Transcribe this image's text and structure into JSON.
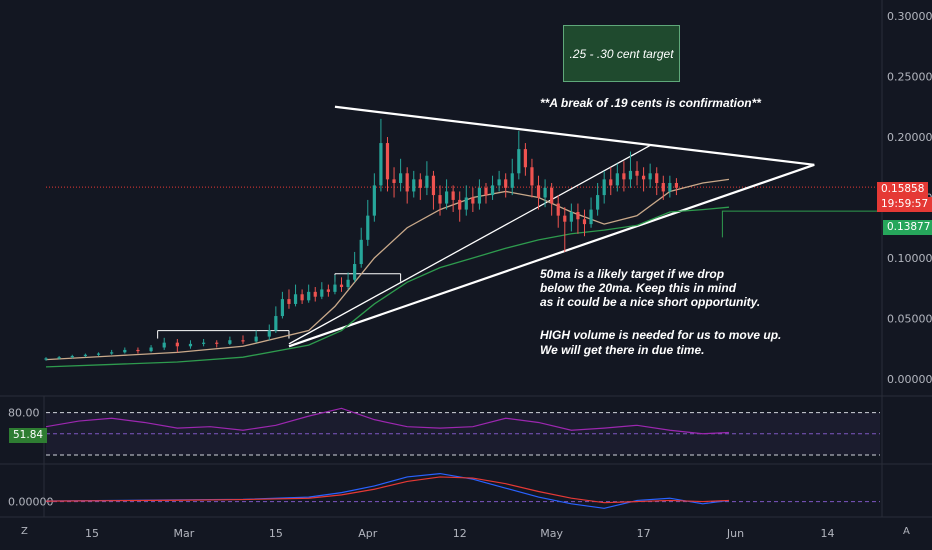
{
  "chart_data": [
    {
      "type": "candlestick",
      "title": "",
      "ylim": [
        -0.005,
        0.305
      ],
      "y_ticks": [
        "0.30000",
        "0.25000",
        "0.20000",
        "0.15000",
        "0.10000",
        "0.05000",
        "0.00000"
      ],
      "x_ticks": [
        "15",
        "Mar",
        "15",
        "Apr",
        "12",
        "May",
        "17",
        "Jun",
        "14"
      ],
      "x_range_days": [
        0,
        127
      ],
      "series": [
        {
          "name": "20ma",
          "color": "#c9a98a",
          "style": "line",
          "x": [
            0,
            10,
            20,
            30,
            40,
            44,
            50,
            55,
            60,
            65,
            70,
            75,
            80,
            85,
            90,
            95,
            100,
            104
          ],
          "y": [
            0.016,
            0.019,
            0.022,
            0.027,
            0.04,
            0.06,
            0.1,
            0.125,
            0.14,
            0.15,
            0.155,
            0.15,
            0.138,
            0.128,
            0.135,
            0.155,
            0.162,
            0.165
          ]
        },
        {
          "name": "50ma",
          "color": "#2e9b4e",
          "style": "line",
          "x": [
            0,
            10,
            20,
            30,
            40,
            45,
            50,
            55,
            60,
            65,
            70,
            75,
            80,
            85,
            90,
            95,
            100,
            104
          ],
          "y": [
            0.01,
            0.012,
            0.014,
            0.018,
            0.028,
            0.04,
            0.062,
            0.08,
            0.092,
            0.1,
            0.108,
            0.115,
            0.12,
            0.123,
            0.127,
            0.138,
            0.14,
            0.142
          ]
        }
      ],
      "candles": [
        {
          "d": 0,
          "o": 0.016,
          "c": 0.017,
          "h": 0.018,
          "l": 0.015
        },
        {
          "d": 2,
          "o": 0.017,
          "c": 0.018,
          "h": 0.019,
          "l": 0.016
        },
        {
          "d": 4,
          "o": 0.018,
          "c": 0.019,
          "h": 0.02,
          "l": 0.017
        },
        {
          "d": 6,
          "o": 0.019,
          "c": 0.02,
          "h": 0.021,
          "l": 0.018
        },
        {
          "d": 8,
          "o": 0.02,
          "c": 0.021,
          "h": 0.022,
          "l": 0.019
        },
        {
          "d": 10,
          "o": 0.021,
          "c": 0.022,
          "h": 0.024,
          "l": 0.02
        },
        {
          "d": 12,
          "o": 0.022,
          "c": 0.024,
          "h": 0.026,
          "l": 0.021
        },
        {
          "d": 14,
          "o": 0.024,
          "c": 0.023,
          "h": 0.026,
          "l": 0.021
        },
        {
          "d": 16,
          "o": 0.023,
          "c": 0.026,
          "h": 0.028,
          "l": 0.022
        },
        {
          "d": 18,
          "o": 0.026,
          "c": 0.03,
          "h": 0.034,
          "l": 0.024
        },
        {
          "d": 20,
          "o": 0.03,
          "c": 0.027,
          "h": 0.033,
          "l": 0.022
        },
        {
          "d": 22,
          "o": 0.027,
          "c": 0.029,
          "h": 0.032,
          "l": 0.025
        },
        {
          "d": 24,
          "o": 0.029,
          "c": 0.03,
          "h": 0.033,
          "l": 0.027
        },
        {
          "d": 26,
          "o": 0.03,
          "c": 0.029,
          "h": 0.032,
          "l": 0.026
        },
        {
          "d": 28,
          "o": 0.029,
          "c": 0.032,
          "h": 0.035,
          "l": 0.028
        },
        {
          "d": 30,
          "o": 0.032,
          "c": 0.031,
          "h": 0.036,
          "l": 0.029
        },
        {
          "d": 32,
          "o": 0.031,
          "c": 0.035,
          "h": 0.04,
          "l": 0.03
        },
        {
          "d": 34,
          "o": 0.035,
          "c": 0.04,
          "h": 0.045,
          "l": 0.032
        },
        {
          "d": 35,
          "o": 0.04,
          "c": 0.052,
          "h": 0.06,
          "l": 0.038
        },
        {
          "d": 36,
          "o": 0.052,
          "c": 0.066,
          "h": 0.072,
          "l": 0.05
        },
        {
          "d": 37,
          "o": 0.066,
          "c": 0.062,
          "h": 0.074,
          "l": 0.058
        },
        {
          "d": 38,
          "o": 0.062,
          "c": 0.07,
          "h": 0.078,
          "l": 0.06
        },
        {
          "d": 39,
          "o": 0.07,
          "c": 0.065,
          "h": 0.074,
          "l": 0.062
        },
        {
          "d": 40,
          "o": 0.065,
          "c": 0.072,
          "h": 0.078,
          "l": 0.063
        },
        {
          "d": 41,
          "o": 0.072,
          "c": 0.068,
          "h": 0.076,
          "l": 0.064
        },
        {
          "d": 42,
          "o": 0.068,
          "c": 0.074,
          "h": 0.08,
          "l": 0.066
        },
        {
          "d": 43,
          "o": 0.074,
          "c": 0.072,
          "h": 0.078,
          "l": 0.068
        },
        {
          "d": 44,
          "o": 0.072,
          "c": 0.078,
          "h": 0.086,
          "l": 0.07
        },
        {
          "d": 45,
          "o": 0.078,
          "c": 0.076,
          "h": 0.084,
          "l": 0.072
        },
        {
          "d": 46,
          "o": 0.076,
          "c": 0.082,
          "h": 0.088,
          "l": 0.074
        },
        {
          "d": 47,
          "o": 0.082,
          "c": 0.095,
          "h": 0.105,
          "l": 0.08
        },
        {
          "d": 48,
          "o": 0.095,
          "c": 0.115,
          "h": 0.125,
          "l": 0.092
        },
        {
          "d": 49,
          "o": 0.115,
          "c": 0.135,
          "h": 0.148,
          "l": 0.11
        },
        {
          "d": 50,
          "o": 0.135,
          "c": 0.16,
          "h": 0.17,
          "l": 0.13
        },
        {
          "d": 51,
          "o": 0.16,
          "c": 0.195,
          "h": 0.215,
          "l": 0.155
        },
        {
          "d": 52,
          "o": 0.195,
          "c": 0.165,
          "h": 0.2,
          "l": 0.155
        },
        {
          "d": 53,
          "o": 0.165,
          "c": 0.162,
          "h": 0.175,
          "l": 0.15
        },
        {
          "d": 54,
          "o": 0.162,
          "c": 0.17,
          "h": 0.182,
          "l": 0.155
        },
        {
          "d": 55,
          "o": 0.17,
          "c": 0.155,
          "h": 0.175,
          "l": 0.145
        },
        {
          "d": 56,
          "o": 0.155,
          "c": 0.165,
          "h": 0.172,
          "l": 0.15
        },
        {
          "d": 57,
          "o": 0.165,
          "c": 0.158,
          "h": 0.17,
          "l": 0.148
        },
        {
          "d": 58,
          "o": 0.158,
          "c": 0.168,
          "h": 0.18,
          "l": 0.152
        },
        {
          "d": 59,
          "o": 0.168,
          "c": 0.152,
          "h": 0.172,
          "l": 0.14
        },
        {
          "d": 60,
          "o": 0.152,
          "c": 0.145,
          "h": 0.16,
          "l": 0.135
        },
        {
          "d": 61,
          "o": 0.145,
          "c": 0.155,
          "h": 0.165,
          "l": 0.14
        },
        {
          "d": 62,
          "o": 0.155,
          "c": 0.148,
          "h": 0.16,
          "l": 0.138
        },
        {
          "d": 63,
          "o": 0.148,
          "c": 0.14,
          "h": 0.155,
          "l": 0.13
        },
        {
          "d": 64,
          "o": 0.14,
          "c": 0.15,
          "h": 0.16,
          "l": 0.135
        },
        {
          "d": 65,
          "o": 0.15,
          "c": 0.145,
          "h": 0.158,
          "l": 0.138
        },
        {
          "d": 66,
          "o": 0.145,
          "c": 0.158,
          "h": 0.165,
          "l": 0.14
        },
        {
          "d": 67,
          "o": 0.158,
          "c": 0.152,
          "h": 0.162,
          "l": 0.145
        },
        {
          "d": 68,
          "o": 0.152,
          "c": 0.16,
          "h": 0.168,
          "l": 0.148
        },
        {
          "d": 69,
          "o": 0.16,
          "c": 0.165,
          "h": 0.172,
          "l": 0.155
        },
        {
          "d": 70,
          "o": 0.165,
          "c": 0.158,
          "h": 0.17,
          "l": 0.15
        },
        {
          "d": 71,
          "o": 0.158,
          "c": 0.17,
          "h": 0.182,
          "l": 0.152
        },
        {
          "d": 72,
          "o": 0.17,
          "c": 0.19,
          "h": 0.205,
          "l": 0.165
        },
        {
          "d": 73,
          "o": 0.19,
          "c": 0.175,
          "h": 0.195,
          "l": 0.168
        },
        {
          "d": 74,
          "o": 0.175,
          "c": 0.16,
          "h": 0.182,
          "l": 0.15
        },
        {
          "d": 75,
          "o": 0.16,
          "c": 0.15,
          "h": 0.168,
          "l": 0.14
        },
        {
          "d": 76,
          "o": 0.15,
          "c": 0.158,
          "h": 0.165,
          "l": 0.142
        },
        {
          "d": 77,
          "o": 0.158,
          "c": 0.145,
          "h": 0.162,
          "l": 0.135
        },
        {
          "d": 78,
          "o": 0.145,
          "c": 0.135,
          "h": 0.152,
          "l": 0.125
        },
        {
          "d": 79,
          "o": 0.135,
          "c": 0.13,
          "h": 0.142,
          "l": 0.105
        },
        {
          "d": 80,
          "o": 0.13,
          "c": 0.138,
          "h": 0.145,
          "l": 0.122
        },
        {
          "d": 81,
          "o": 0.138,
          "c": 0.132,
          "h": 0.145,
          "l": 0.12
        },
        {
          "d": 82,
          "o": 0.132,
          "c": 0.128,
          "h": 0.14,
          "l": 0.118
        },
        {
          "d": 83,
          "o": 0.128,
          "c": 0.14,
          "h": 0.15,
          "l": 0.125
        },
        {
          "d": 84,
          "o": 0.14,
          "c": 0.152,
          "h": 0.162,
          "l": 0.135
        },
        {
          "d": 85,
          "o": 0.152,
          "c": 0.165,
          "h": 0.172,
          "l": 0.145
        },
        {
          "d": 86,
          "o": 0.165,
          "c": 0.16,
          "h": 0.175,
          "l": 0.152
        },
        {
          "d": 87,
          "o": 0.16,
          "c": 0.17,
          "h": 0.178,
          "l": 0.155
        },
        {
          "d": 88,
          "o": 0.17,
          "c": 0.165,
          "h": 0.18,
          "l": 0.155
        },
        {
          "d": 89,
          "o": 0.165,
          "c": 0.172,
          "h": 0.188,
          "l": 0.158
        },
        {
          "d": 90,
          "o": 0.172,
          "c": 0.168,
          "h": 0.18,
          "l": 0.16
        },
        {
          "d": 91,
          "o": 0.168,
          "c": 0.165,
          "h": 0.175,
          "l": 0.155
        },
        {
          "d": 92,
          "o": 0.165,
          "c": 0.17,
          "h": 0.178,
          "l": 0.158
        },
        {
          "d": 93,
          "o": 0.17,
          "c": 0.162,
          "h": 0.175,
          "l": 0.152
        },
        {
          "d": 94,
          "o": 0.162,
          "c": 0.155,
          "h": 0.168,
          "l": 0.148
        },
        {
          "d": 95,
          "o": 0.155,
          "c": 0.162,
          "h": 0.168,
          "l": 0.15
        },
        {
          "d": 96,
          "o": 0.162,
          "c": 0.158,
          "h": 0.166,
          "l": 0.152
        }
      ],
      "trendlines": [
        {
          "name": "upper-resistance",
          "x1": 44,
          "y1": 0.225,
          "x2": 117,
          "y2": 0.177
        },
        {
          "name": "lower-support",
          "x1": 37,
          "y1": 0.027,
          "x2": 117,
          "y2": 0.177
        },
        {
          "name": "inner-support",
          "x1": 37,
          "y1": 0.029,
          "x2": 92,
          "y2": 0.193
        },
        {
          "name": "accumulation-box-1",
          "x1": 17,
          "y1": 0.04,
          "x2": 37,
          "y2": 0.04
        },
        {
          "name": "accumulation-box-2",
          "x1": 44,
          "y1": 0.087,
          "x2": 54,
          "y2": 0.087
        }
      ],
      "current_price": "0.15858",
      "countdown": "19:59:57",
      "ma_level": "0.13877",
      "target_box_text": ".25 - .30 cent target",
      "annotations": [
        "**A break of .19 cents is confirmation**",
        "50ma is a likely target if we drop",
        "below the 20ma. Keep this in mind",
        "as it could be a nice short opportunity.",
        "HIGH volume is needed for us to move up.",
        "We will get there in due time."
      ]
    },
    {
      "type": "line",
      "title": "",
      "y_tick": "80.00",
      "current_value": "51.84",
      "bands": [
        80,
        50,
        20
      ],
      "ylim": [
        10,
        95
      ],
      "series": [
        {
          "name": "",
          "color": "#9c27b0",
          "x": [
            0,
            5,
            10,
            15,
            20,
            25,
            30,
            35,
            40,
            45,
            50,
            55,
            60,
            65,
            70,
            75,
            80,
            85,
            90,
            95,
            100,
            104
          ],
          "y": [
            60,
            68,
            72,
            66,
            58,
            60,
            55,
            62,
            75,
            86,
            70,
            60,
            58,
            60,
            72,
            66,
            55,
            58,
            62,
            55,
            50,
            51.84
          ]
        }
      ]
    },
    {
      "type": "line",
      "title": "",
      "y_tick": "0.00000",
      "ylim": [
        -0.012,
        0.03
      ],
      "series": [
        {
          "name": "",
          "color": "#2962ff",
          "x": [
            0,
            10,
            20,
            30,
            40,
            45,
            50,
            55,
            60,
            65,
            70,
            75,
            80,
            85,
            90,
            95,
            100,
            104
          ],
          "y": [
            0.0005,
            0.001,
            0.0015,
            0.002,
            0.004,
            0.008,
            0.014,
            0.022,
            0.025,
            0.02,
            0.012,
            0.004,
            -0.002,
            -0.006,
            0.001,
            0.003,
            -0.002,
            0.001
          ]
        },
        {
          "name": "",
          "color": "#e53935",
          "x": [
            0,
            10,
            20,
            30,
            40,
            45,
            50,
            55,
            60,
            65,
            70,
            75,
            80,
            85,
            90,
            95,
            100,
            104
          ],
          "y": [
            0.0004,
            0.0008,
            0.0012,
            0.0018,
            0.003,
            0.006,
            0.011,
            0.018,
            0.022,
            0.021,
            0.016,
            0.009,
            0.003,
            -0.001,
            0.0,
            0.001,
            0.0,
            0.001
          ]
        }
      ]
    }
  ],
  "toolbar": {
    "left_btn": "Z",
    "right_btn": "A"
  }
}
